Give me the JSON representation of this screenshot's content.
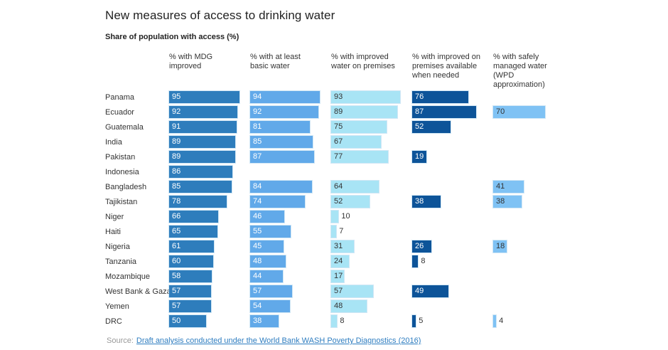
{
  "header": {
    "title": "New measures of access to drinking water",
    "subtitle": "Share of population with access (%)"
  },
  "source": {
    "label": "Source:",
    "link_text": "Draft analysis conducted under the World Bank WASH Poverty Diagnostics (2016)"
  },
  "colors": {
    "title_text": "#222222",
    "body_text": "#333333",
    "source_label_text": "#999999",
    "link": "#2e7dc0",
    "bar_outline": "#b9daf0"
  },
  "chart_data": {
    "type": "bar",
    "orientation": "horizontal",
    "title": "New measures of access to drinking water",
    "subtitle": "Share of population with access (%)",
    "xlim": [
      0,
      100
    ],
    "grid": false,
    "legend_position": "column-headers-top",
    "categories": [
      "Panama",
      "Ecuador",
      "Guatemala",
      "India",
      "Pakistan",
      "Indonesia",
      "Bangladesh",
      "Tajikistan",
      "Niger",
      "Haiti",
      "Nigeria",
      "Tanzania",
      "Mozambique",
      "West Bank & Gaza",
      "Yemen",
      "DRC"
    ],
    "series": [
      {
        "name": "% with MDG improved",
        "color": "#2e7dbc",
        "label_color": "#ffffff",
        "values": [
          95,
          92,
          91,
          89,
          89,
          86,
          85,
          78,
          66,
          65,
          61,
          60,
          58,
          57,
          57,
          50
        ]
      },
      {
        "name": "% with at least basic water",
        "color": "#61a9e9",
        "label_color": "#ffffff",
        "values": [
          94,
          92,
          81,
          85,
          87,
          null,
          84,
          74,
          46,
          55,
          45,
          48,
          44,
          57,
          54,
          38
        ]
      },
      {
        "name": "% with improved water on premises",
        "color": "#a8e4f5",
        "label_color": "#333333",
        "values": [
          93,
          89,
          75,
          67,
          77,
          null,
          64,
          52,
          10,
          7,
          31,
          24,
          17,
          57,
          48,
          8
        ]
      },
      {
        "name": "% with improved on premises available when needed",
        "color": "#0d5499",
        "label_color": "#ffffff",
        "values": [
          76,
          87,
          52,
          null,
          19,
          null,
          null,
          38,
          null,
          null,
          26,
          8,
          null,
          49,
          null,
          5
        ]
      },
      {
        "name": "% with safely managed water (WPD approximation)",
        "color": "#7fc2f4",
        "label_color": "#333333",
        "values": [
          null,
          70,
          null,
          null,
          null,
          null,
          41,
          38,
          null,
          null,
          18,
          null,
          null,
          null,
          null,
          4
        ]
      }
    ]
  }
}
